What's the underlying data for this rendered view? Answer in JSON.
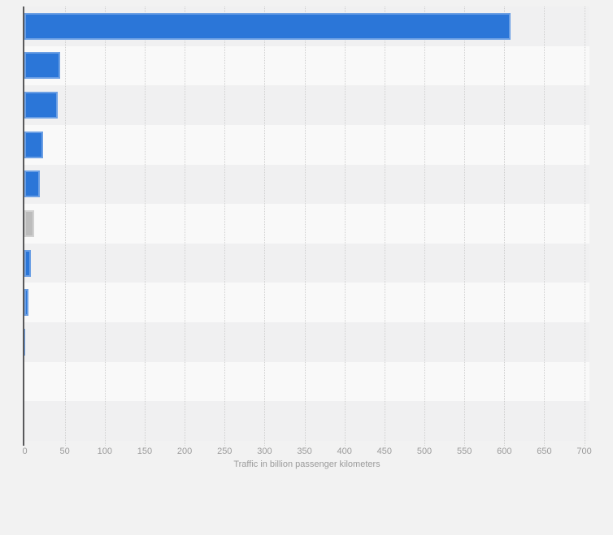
{
  "page": {
    "background": "#f2f2f2"
  },
  "chart_data": {
    "type": "bar",
    "orientation": "horizontal",
    "title": "",
    "xlabel": "Traffic in billion passenger kilometers",
    "ylabel": "",
    "categories": [
      "",
      "",
      "",
      "",
      "",
      "",
      "",
      "",
      "",
      "",
      ""
    ],
    "values": [
      608,
      45,
      42,
      23,
      19,
      12,
      8,
      5,
      1.5,
      0,
      0
    ],
    "bar_colors": [
      "#2b76d8",
      "#2b76d8",
      "#2b76d8",
      "#2b76d8",
      "#2b76d8",
      "#bcbcbc",
      "#2b76d8",
      "#2b76d8",
      "#2b76d8",
      "#2b76d8",
      "#2b76d8"
    ],
    "xlim": [
      0,
      707
    ],
    "xticks": [
      0,
      50,
      100,
      150,
      200,
      250,
      300,
      350,
      400,
      450,
      500,
      550,
      600,
      650,
      700
    ],
    "grid": "vertical-dotted",
    "legend": "none",
    "colors": {
      "bar_primary": "#2b76d8",
      "bar_muted": "#bcbcbc",
      "band_odd": "#f0f0f1",
      "band_even": "#f9f9f9",
      "axis_line": "#59595b",
      "gridline": "#cfcfcf",
      "tick_label": "#9b9b9b",
      "page_background": "#f2f2f2"
    }
  }
}
